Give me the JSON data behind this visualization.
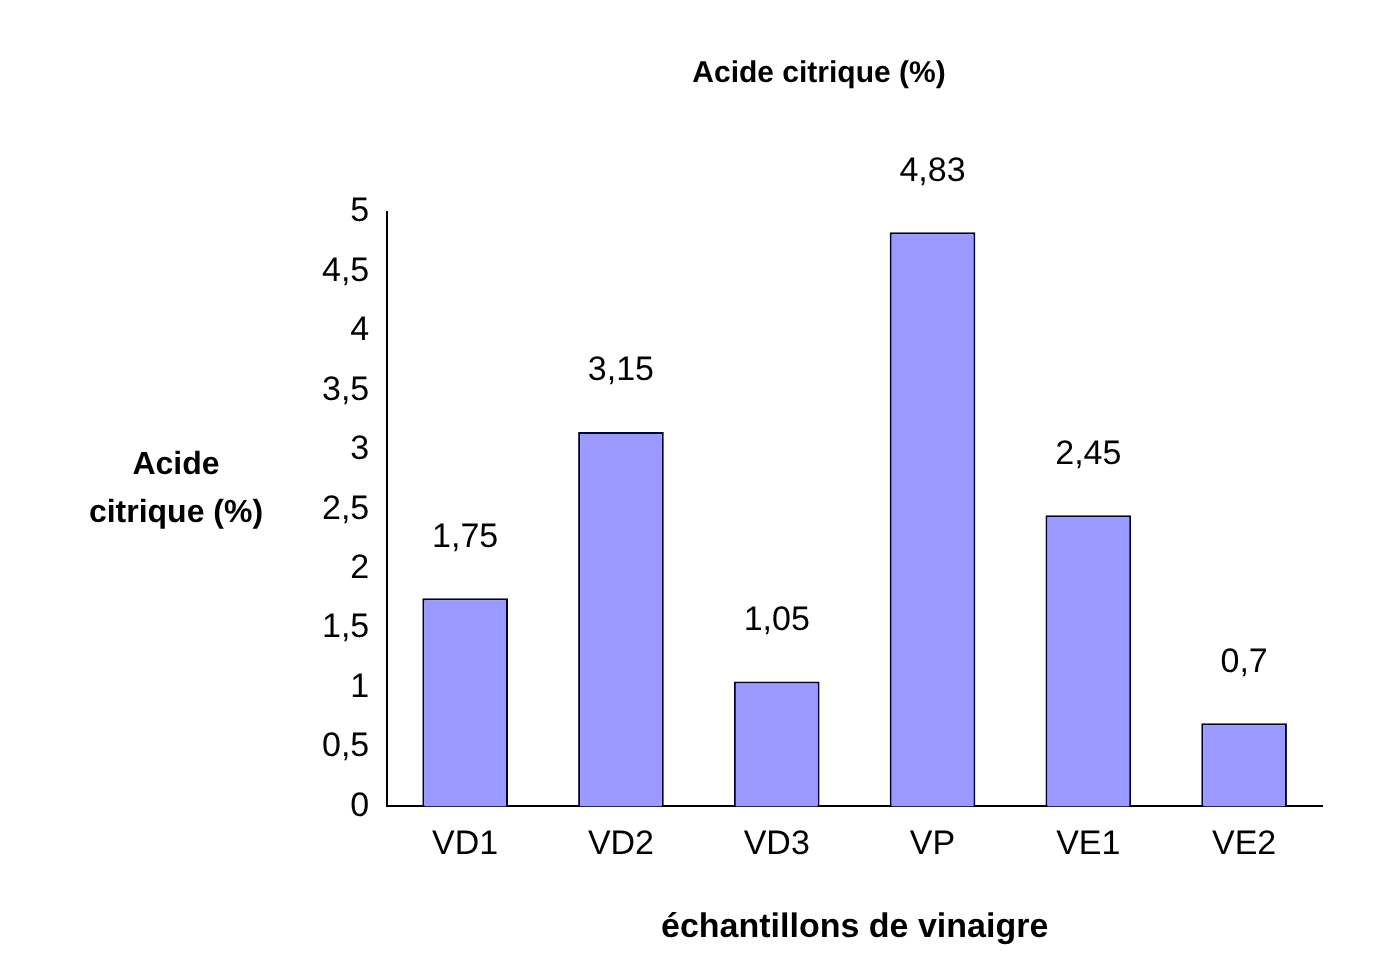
{
  "chart_data": {
    "type": "bar",
    "title": "Acide citrique (%)",
    "xlabel": "échantillons de vinaigre",
    "ylabel": "Acide citrique (%)",
    "categories": [
      "VD1",
      "VD2",
      "VD3",
      "VP",
      "VE1",
      "VE2"
    ],
    "values": [
      1.75,
      3.15,
      1.05,
      4.83,
      2.45,
      0.7
    ],
    "value_labels": [
      "1,75",
      "3,15",
      "1,05",
      "4,83",
      "2,45",
      "0,7"
    ],
    "color": "#9999ff",
    "ylim": [
      0,
      5
    ],
    "yticks": [
      0,
      {
        "value": 0.5,
        "label": "0,5"
      },
      1,
      {
        "value": 1.5,
        "label": "1,5"
      },
      2,
      {
        "value": 2.5,
        "label": "2,5"
      },
      3,
      {
        "value": 3.5,
        "label": "3,5"
      },
      4,
      {
        "value": 4.5,
        "label": "4,5"
      },
      5
    ],
    "grid": false,
    "legend": false
  }
}
